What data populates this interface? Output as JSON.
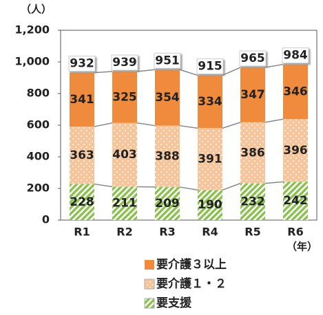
{
  "chart_data": {
    "type": "stacked_bar",
    "y_unit": "（人）",
    "x_unit": "（年）",
    "categories": [
      "R1",
      "R2",
      "R3",
      "R4",
      "R5",
      "R6"
    ],
    "series": [
      {
        "name": "要支援",
        "color": "#8cc152",
        "pattern": "hatch",
        "values": [
          228,
          211,
          209,
          190,
          232,
          242
        ]
      },
      {
        "name": "要介護１・２",
        "color": "#f8c49a",
        "pattern": "dots",
        "values": [
          363,
          403,
          388,
          391,
          386,
          396
        ]
      },
      {
        "name": "要介護３以上",
        "color": "#f08a3c",
        "pattern": "solid",
        "values": [
          341,
          325,
          354,
          334,
          347,
          346
        ]
      }
    ],
    "totals": [
      932,
      939,
      951,
      915,
      965,
      984
    ],
    "ylim": [
      0,
      1200
    ],
    "yticks": [
      0,
      200,
      400,
      600,
      800,
      {
        "value": 1000,
        "label": "1,000"
      },
      {
        "value": 1200,
        "label": "1,200"
      }
    ],
    "grid": false,
    "legend": "bottom"
  }
}
